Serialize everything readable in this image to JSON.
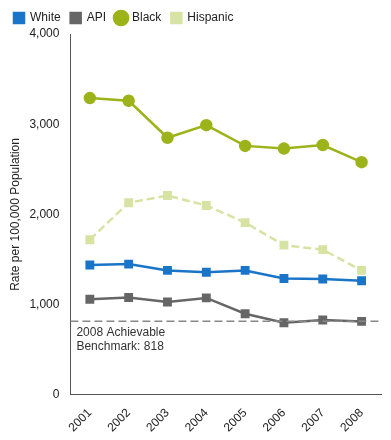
{
  "chart_data": {
    "type": "line",
    "y_label": "Rate per 100,000 Population",
    "categories": [
      "2001",
      "2002",
      "2003",
      "2004",
      "2005",
      "2006",
      "2007",
      "2008"
    ],
    "series": [
      {
        "name": "White",
        "color": "#1a75c9",
        "marker": "square",
        "line_style": "solid",
        "values": [
          1440,
          1450,
          1380,
          1360,
          1380,
          1290,
          1285,
          1265
        ]
      },
      {
        "name": "API",
        "color": "#666666",
        "marker": "square",
        "line_style": "solid",
        "values": [
          1060,
          1080,
          1030,
          1075,
          900,
          800,
          830,
          815
        ]
      },
      {
        "name": "Black",
        "color": "#9db31a",
        "marker": "circle",
        "line_style": "solid",
        "values": [
          3290,
          3260,
          2850,
          2990,
          2760,
          2730,
          2770,
          2580
        ]
      },
      {
        "name": "Hispanic",
        "color": "#d6e3a2",
        "marker": "square",
        "line_style": "dashed",
        "values": [
          1720,
          2130,
          2210,
          2100,
          1910,
          1660,
          1610,
          1380
        ]
      }
    ],
    "benchmark": {
      "value": 818,
      "label": [
        "2008 Achievable",
        "Benchmark: 818"
      ],
      "line_style": "dashed",
      "color": "#888888"
    },
    "ylim": [
      0,
      4000
    ],
    "yticks": [
      0,
      1000,
      2000,
      3000,
      4000
    ],
    "grid": false,
    "legend": "top"
  }
}
